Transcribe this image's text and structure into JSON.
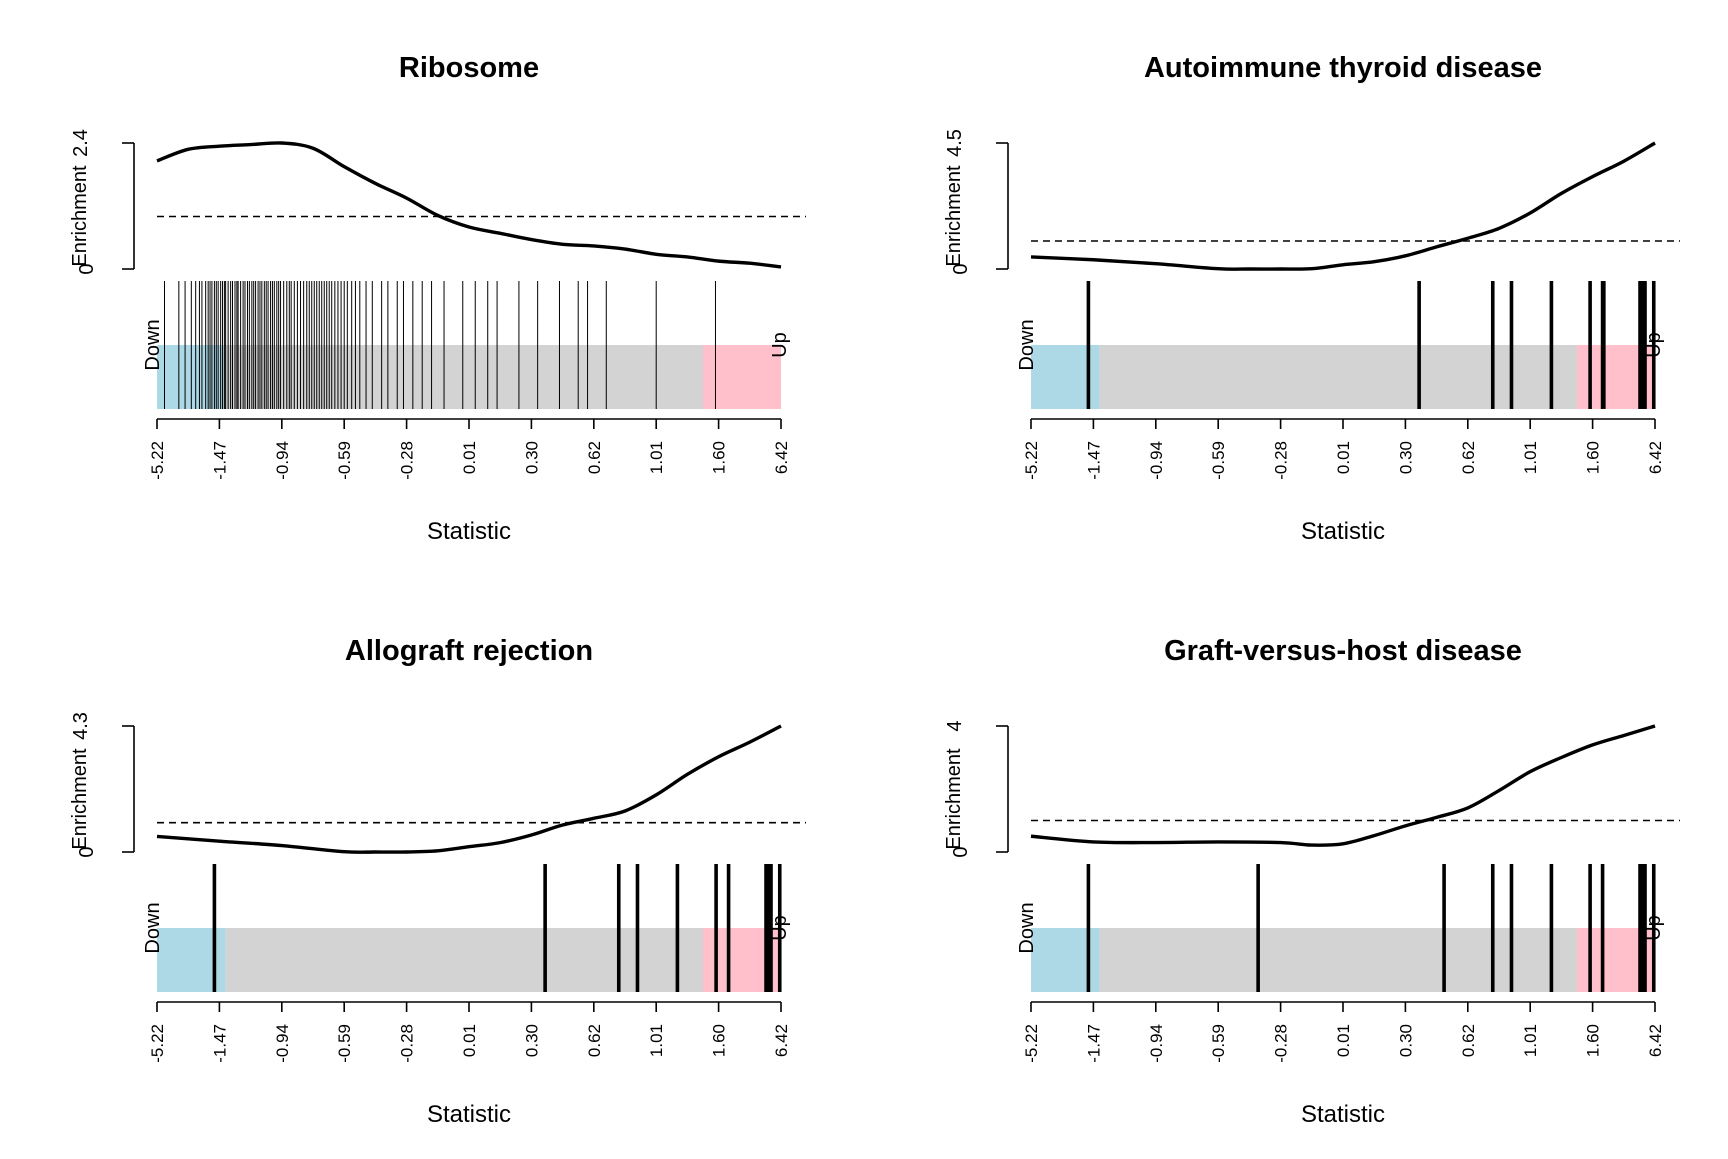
{
  "chart_data": [
    {
      "type": "barcode-enrichment",
      "title": "Ribosome",
      "xlabel": "Statistic",
      "ylabel": "Enrichment",
      "ymax_label": "2.4",
      "ymin_label": "0",
      "ymax": 2.4,
      "expected": 1.0,
      "down_label": "Down",
      "up_label": "Up",
      "x_ticks": [
        "-5.22",
        "-1.47",
        "-0.94",
        "-0.59",
        "-0.28",
        "0.01",
        "0.30",
        "0.62",
        "1.01",
        "1.60",
        "6.42"
      ],
      "blue_end": 0.11,
      "pink_start": 0.875,
      "bar_width": "thin",
      "gene_ranks": [
        0.012,
        0.035,
        0.045,
        0.055,
        0.062,
        0.068,
        0.072,
        0.078,
        0.082,
        0.085,
        0.088,
        0.092,
        0.095,
        0.098,
        0.102,
        0.105,
        0.108,
        0.11,
        0.114,
        0.118,
        0.121,
        0.125,
        0.128,
        0.13,
        0.134,
        0.138,
        0.141,
        0.145,
        0.148,
        0.152,
        0.155,
        0.158,
        0.162,
        0.165,
        0.168,
        0.172,
        0.175,
        0.178,
        0.182,
        0.185,
        0.188,
        0.192,
        0.195,
        0.198,
        0.203,
        0.208,
        0.212,
        0.215,
        0.22,
        0.225,
        0.23,
        0.235,
        0.24,
        0.244,
        0.248,
        0.252,
        0.256,
        0.26,
        0.264,
        0.268,
        0.272,
        0.276,
        0.28,
        0.285,
        0.29,
        0.295,
        0.3,
        0.305,
        0.312,
        0.318,
        0.325,
        0.335,
        0.345,
        0.36,
        0.37,
        0.385,
        0.395,
        0.41,
        0.425,
        0.44,
        0.46,
        0.49,
        0.51,
        0.53,
        0.545,
        0.58,
        0.61,
        0.645,
        0.675,
        0.69,
        0.72,
        0.8,
        0.895
      ],
      "curve_x": [
        0,
        0.05,
        0.1,
        0.15,
        0.2,
        0.25,
        0.3,
        0.35,
        0.4,
        0.45,
        0.5,
        0.55,
        0.6,
        0.65,
        0.7,
        0.75,
        0.8,
        0.85,
        0.9,
        0.95,
        1.0
      ],
      "curve_y": [
        2.06,
        2.28,
        2.34,
        2.37,
        2.4,
        2.3,
        1.95,
        1.63,
        1.35,
        1.02,
        0.8,
        0.68,
        0.56,
        0.47,
        0.44,
        0.38,
        0.28,
        0.23,
        0.15,
        0.11,
        0.04
      ]
    },
    {
      "type": "barcode-enrichment",
      "title": "Autoimmune thyroid disease",
      "xlabel": "Statistic",
      "ylabel": "Enrichment",
      "ymax_label": "4.5",
      "ymin_label": "0",
      "ymax": 4.5,
      "expected": 1.0,
      "down_label": "Down",
      "up_label": "Up",
      "x_ticks": [
        "-5.22",
        "-1.47",
        "-0.94",
        "-0.59",
        "-0.28",
        "0.01",
        "0.30",
        "0.62",
        "1.01",
        "1.60",
        "6.42"
      ],
      "blue_end": 0.11,
      "pink_start": 0.875,
      "bar_width": "thick",
      "gene_ranks": [
        0.092,
        0.622,
        0.74,
        0.77,
        0.834,
        0.896,
        0.916,
        0.918,
        0.976,
        0.98,
        0.984,
        0.998
      ],
      "curve_x": [
        0,
        0.1,
        0.2,
        0.3,
        0.35,
        0.4,
        0.45,
        0.5,
        0.55,
        0.6,
        0.65,
        0.7,
        0.75,
        0.8,
        0.85,
        0.9,
        0.95,
        1.0
      ],
      "curve_y": [
        0.43,
        0.33,
        0.19,
        0.01,
        0.0,
        0.0,
        0.01,
        0.15,
        0.26,
        0.47,
        0.79,
        1.1,
        1.45,
        2.0,
        2.7,
        3.3,
        3.85,
        4.5
      ]
    },
    {
      "type": "barcode-enrichment",
      "title": "Allograft rejection",
      "xlabel": "Statistic",
      "ylabel": "Enrichment",
      "ymax_label": "4.3",
      "ymin_label": "0",
      "ymax": 4.3,
      "expected": 1.0,
      "down_label": "Down",
      "up_label": "Up",
      "x_ticks": [
        "-5.22",
        "-1.47",
        "-0.94",
        "-0.59",
        "-0.28",
        "0.01",
        "0.30",
        "0.62",
        "1.01",
        "1.60",
        "6.42"
      ],
      "blue_end": 0.11,
      "pink_start": 0.875,
      "bar_width": "thick",
      "gene_ranks": [
        0.092,
        0.622,
        0.74,
        0.77,
        0.834,
        0.896,
        0.916,
        0.976,
        0.98,
        0.984,
        0.998
      ],
      "curve_x": [
        0,
        0.1,
        0.2,
        0.3,
        0.35,
        0.4,
        0.45,
        0.5,
        0.55,
        0.6,
        0.65,
        0.7,
        0.75,
        0.8,
        0.85,
        0.9,
        0.95,
        1.0
      ],
      "curve_y": [
        0.53,
        0.37,
        0.22,
        0.01,
        0.0,
        0.0,
        0.04,
        0.18,
        0.32,
        0.58,
        0.92,
        1.15,
        1.4,
        1.95,
        2.65,
        3.25,
        3.75,
        4.3
      ]
    },
    {
      "type": "barcode-enrichment",
      "title": "Graft-versus-host disease",
      "xlabel": "Statistic",
      "ylabel": "Enrichment",
      "ymax_label": "4",
      "ymin_label": "0",
      "ymax": 4,
      "expected": 1.0,
      "down_label": "Down",
      "up_label": "Up",
      "x_ticks": [
        "-5.22",
        "-1.47",
        "-0.94",
        "-0.59",
        "-0.28",
        "0.01",
        "0.30",
        "0.62",
        "1.01",
        "1.60",
        "6.42"
      ],
      "blue_end": 0.11,
      "pink_start": 0.875,
      "bar_width": "thick",
      "gene_ranks": [
        0.092,
        0.364,
        0.662,
        0.74,
        0.77,
        0.834,
        0.896,
        0.916,
        0.976,
        0.98,
        0.984,
        0.998
      ],
      "curve_x": [
        0,
        0.1,
        0.2,
        0.3,
        0.4,
        0.45,
        0.5,
        0.55,
        0.6,
        0.65,
        0.7,
        0.75,
        0.8,
        0.85,
        0.9,
        0.95,
        1.0
      ],
      "curve_y": [
        0.5,
        0.32,
        0.3,
        0.32,
        0.3,
        0.22,
        0.26,
        0.52,
        0.83,
        1.1,
        1.4,
        1.95,
        2.55,
        3.0,
        3.4,
        3.7,
        4.0
      ]
    }
  ],
  "colors": {
    "down_region": "#ADD8E6",
    "mid_region": "#D3D3D3",
    "up_region": "#FFC0CB",
    "ink": "#000000"
  }
}
